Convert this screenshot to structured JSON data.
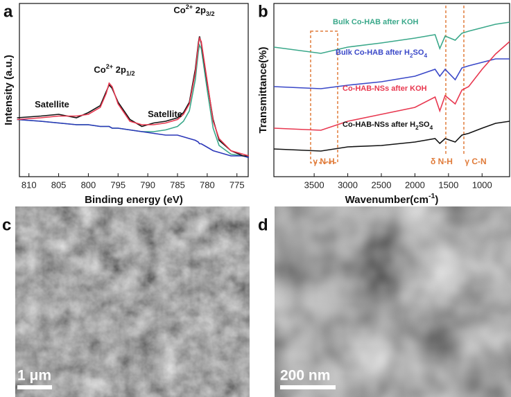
{
  "chart_data": [
    {
      "type": "line",
      "label": "a",
      "x_label": "Binding energy (eV)",
      "y_label": "Intensity (a.u.)",
      "xlim": [
        811.6,
        773.1
      ],
      "xticks": [
        810,
        805,
        800,
        795,
        790,
        785,
        780,
        775
      ],
      "ylim": [
        0,
        100
      ],
      "x": [
        812,
        808,
        805,
        802,
        800,
        798,
        797,
        796.5,
        796,
        795,
        793,
        791,
        789,
        787,
        785,
        784,
        783,
        782,
        781.5,
        781.3,
        781,
        780,
        779,
        778,
        776,
        774,
        773
      ],
      "series": [
        {
          "color": "#3aa88a",
          "values": [
            33,
            32,
            31,
            30,
            30,
            29,
            29,
            29,
            28,
            28,
            27,
            26,
            26,
            27,
            29,
            32,
            38,
            56,
            72,
            76,
            74,
            50,
            28,
            18,
            13,
            12,
            11
          ]
        },
        {
          "color": "#2a36b8",
          "values": [
            33,
            32,
            31,
            30,
            30,
            29,
            29,
            29,
            28,
            28,
            27,
            26,
            25,
            24,
            24,
            23,
            22,
            21,
            20,
            19,
            19,
            17,
            15,
            14,
            12,
            12,
            11
          ]
        },
        {
          "color": "#111111",
          "values": [
            34,
            35,
            36,
            34,
            37,
            41,
            49,
            53,
            51,
            43,
            33,
            29,
            31,
            32,
            34,
            37,
            43,
            62,
            77,
            81,
            77,
            54,
            33,
            21,
            15,
            12,
            12
          ]
        },
        {
          "color": "#e8374f",
          "values": [
            33,
            34,
            35,
            35,
            36,
            40,
            48,
            54,
            52,
            42,
            32,
            30,
            30,
            31,
            33,
            36,
            42,
            60,
            76,
            80,
            78,
            55,
            32,
            22,
            15,
            13,
            12
          ]
        }
      ],
      "annotations": [
        {
          "segments": [
            {
              "text": "Satellite"
            }
          ]
        },
        {
          "segments": [
            {
              "text": "Co"
            },
            {
              "text": "2+",
              "style": "sup"
            },
            {
              "text": " 2p"
            },
            {
              "text": "1/2",
              "style": "sub"
            }
          ]
        },
        {
          "segments": [
            {
              "text": "Satellite"
            }
          ]
        },
        {
          "segments": [
            {
              "text": "Co"
            },
            {
              "text": "2+",
              "style": "sup"
            },
            {
              "text": " 2p"
            },
            {
              "text": "3/2",
              "style": "sub"
            }
          ]
        }
      ]
    },
    {
      "type": "line",
      "label": "b",
      "x_label": [
        {
          "text": "Wavenumber(cm"
        },
        {
          "text": "-1",
          "style": "sup"
        },
        {
          "text": ")"
        }
      ],
      "y_label": "Transmittance(%)",
      "xlim": [
        4100,
        590
      ],
      "xticks": [
        3500,
        3000,
        2500,
        2000,
        1500,
        1000
      ],
      "ylim": [
        0,
        100
      ],
      "x": [
        4100,
        3400,
        3000,
        2500,
        2000,
        1700,
        1630,
        1550,
        1400,
        1300,
        1200,
        1000,
        800,
        590
      ],
      "series": [
        {
          "name": "Bulk Co-HAB after KOH",
          "color": "#3aa88a",
          "values": [
            74.8,
            71.2,
            74.8,
            77.2,
            80,
            82,
            74,
            81.2,
            78.8,
            82.8,
            84,
            86,
            88,
            89.2
          ]
        },
        {
          "name": "Bulk Co-HAB after H2SO4",
          "color": "#3a48c8",
          "values": [
            52,
            50.8,
            52.8,
            54.8,
            58,
            62,
            58,
            62,
            56,
            62.8,
            64,
            66,
            68,
            68
          ]
        },
        {
          "name": "Co-HAB-NSs after KOH",
          "color": "#e8374f",
          "values": [
            28,
            26.8,
            32,
            36,
            40,
            46,
            38,
            46.8,
            42,
            50,
            52,
            62,
            70.8,
            78
          ]
        },
        {
          "name": "Co-HAB-NSs after H2SO4",
          "color": "#111111",
          "values": [
            16,
            14.8,
            17.2,
            18,
            20,
            22,
            19.2,
            22,
            20,
            24,
            25,
            28,
            30.8,
            32
          ]
        }
      ],
      "annotations": [
        "γ N-H",
        "δ N-H",
        "γ C-N"
      ]
    }
  ],
  "images": [
    {
      "label": "c",
      "scale_bar": "1 μm"
    },
    {
      "label": "d",
      "scale_bar": "200 nm"
    }
  ]
}
